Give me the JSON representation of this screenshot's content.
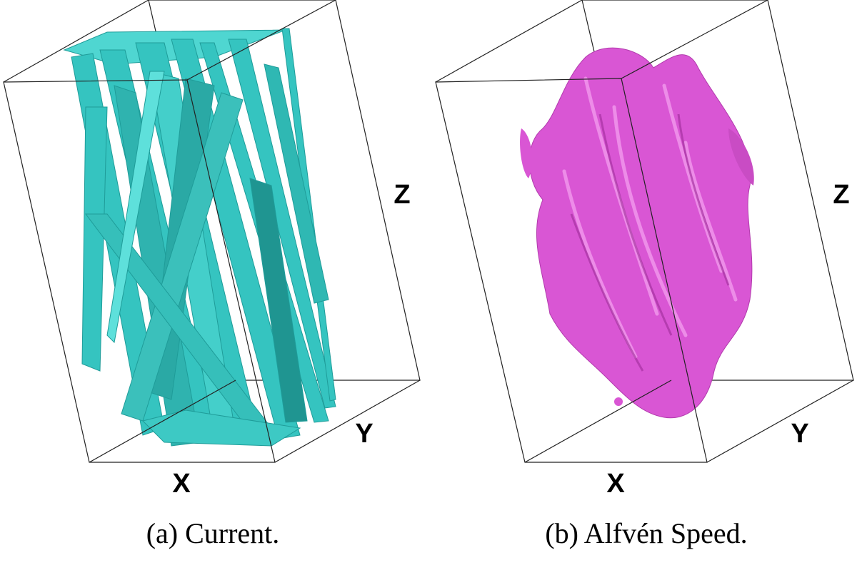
{
  "panels": [
    {
      "x_label": "X",
      "y_label": "Y",
      "z_label": "Z",
      "caption": "(a) Current."
    },
    {
      "x_label": "X",
      "y_label": "Y",
      "z_label": "Z",
      "caption": "(b) Alfvén Speed."
    }
  ]
}
